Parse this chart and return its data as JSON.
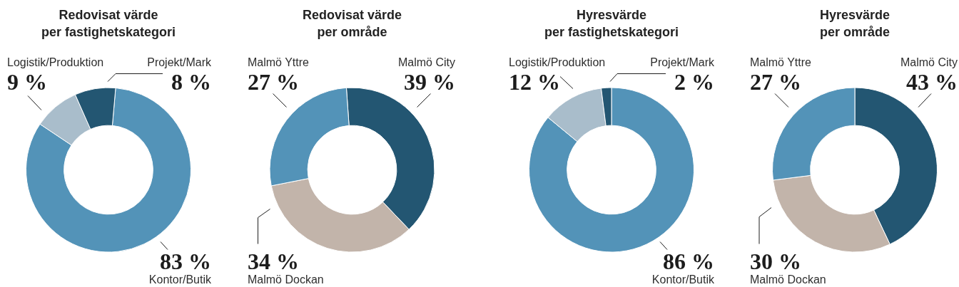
{
  "chart_data": [
    {
      "type": "donut",
      "title": "Redovisat värde\nper fastighetskategori",
      "categories": [
        "Kontor/Butik",
        "Logistik/Produktion",
        "Projekt/Mark"
      ],
      "values": [
        83,
        9,
        8
      ],
      "colors": [
        "#5393b8",
        "#a9bdcb",
        "#235672"
      ],
      "value_labels": [
        "83 %",
        "9 %",
        "8 %"
      ]
    },
    {
      "type": "donut",
      "title": "Redovisat värde\nper område",
      "categories": [
        "Malmö City",
        "Malmö Dockan",
        "Malmö Yttre"
      ],
      "values": [
        39,
        34,
        27
      ],
      "colors": [
        "#235672",
        "#c2b4aa",
        "#5393b8"
      ],
      "value_labels": [
        "39 %",
        "34 %",
        "27 %"
      ]
    },
    {
      "type": "donut",
      "title": "Hyresvärde\nper fastighetskategori",
      "categories": [
        "Kontor/Butik",
        "Logistik/Produktion",
        "Projekt/Mark"
      ],
      "values": [
        86,
        12,
        2
      ],
      "colors": [
        "#5393b8",
        "#a9bdcb",
        "#235672"
      ],
      "value_labels": [
        "86 %",
        "12 %",
        "2 %"
      ]
    },
    {
      "type": "donut",
      "title": "Hyresvärde\nper område",
      "categories": [
        "Malmö City",
        "Malmö Dockan",
        "Malmö Yttre"
      ],
      "values": [
        43,
        30,
        27
      ],
      "colors": [
        "#235672",
        "#c2b4aa",
        "#5393b8"
      ],
      "value_labels": [
        "43 %",
        "30 %",
        "27 %"
      ]
    }
  ]
}
